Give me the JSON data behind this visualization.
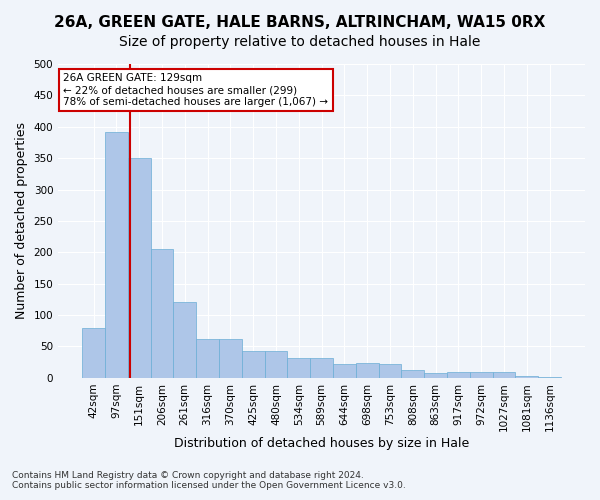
{
  "title": "26A, GREEN GATE, HALE BARNS, ALTRINCHAM, WA15 0RX",
  "subtitle": "Size of property relative to detached houses in Hale",
  "xlabel": "Distribution of detached houses by size in Hale",
  "ylabel": "Number of detached properties",
  "categories": [
    "42sqm",
    "97sqm",
    "151sqm",
    "206sqm",
    "261sqm",
    "316sqm",
    "370sqm",
    "425sqm",
    "480sqm",
    "534sqm",
    "589sqm",
    "644sqm",
    "698sqm",
    "753sqm",
    "808sqm",
    "863sqm",
    "917sqm",
    "972sqm",
    "1027sqm",
    "1081sqm",
    "1136sqm"
  ],
  "values": [
    79,
    391,
    350,
    205,
    121,
    62,
    62,
    43,
    43,
    31,
    31,
    22,
    23,
    22,
    13,
    8,
    9,
    9,
    10,
    3,
    2
  ],
  "bar_color": "#aec6e8",
  "bar_edge_color": "#6aaed6",
  "vline_x": 2.5,
  "vline_color": "#cc0000",
  "annotation_text": "26A GREEN GATE: 129sqm\n← 22% of detached houses are smaller (299)\n78% of semi-detached houses are larger (1,067) →",
  "annotation_box_color": "#ffffff",
  "annotation_box_edge": "#cc0000",
  "ylim": [
    0,
    500
  ],
  "yticks": [
    0,
    50,
    100,
    150,
    200,
    250,
    300,
    350,
    400,
    450,
    500
  ],
  "footnote": "Contains HM Land Registry data © Crown copyright and database right 2024.\nContains public sector information licensed under the Open Government Licence v3.0.",
  "background_color": "#f0f4fa",
  "grid_color": "#ffffff",
  "title_fontsize": 11,
  "subtitle_fontsize": 10,
  "tick_fontsize": 7.5,
  "label_fontsize": 9
}
